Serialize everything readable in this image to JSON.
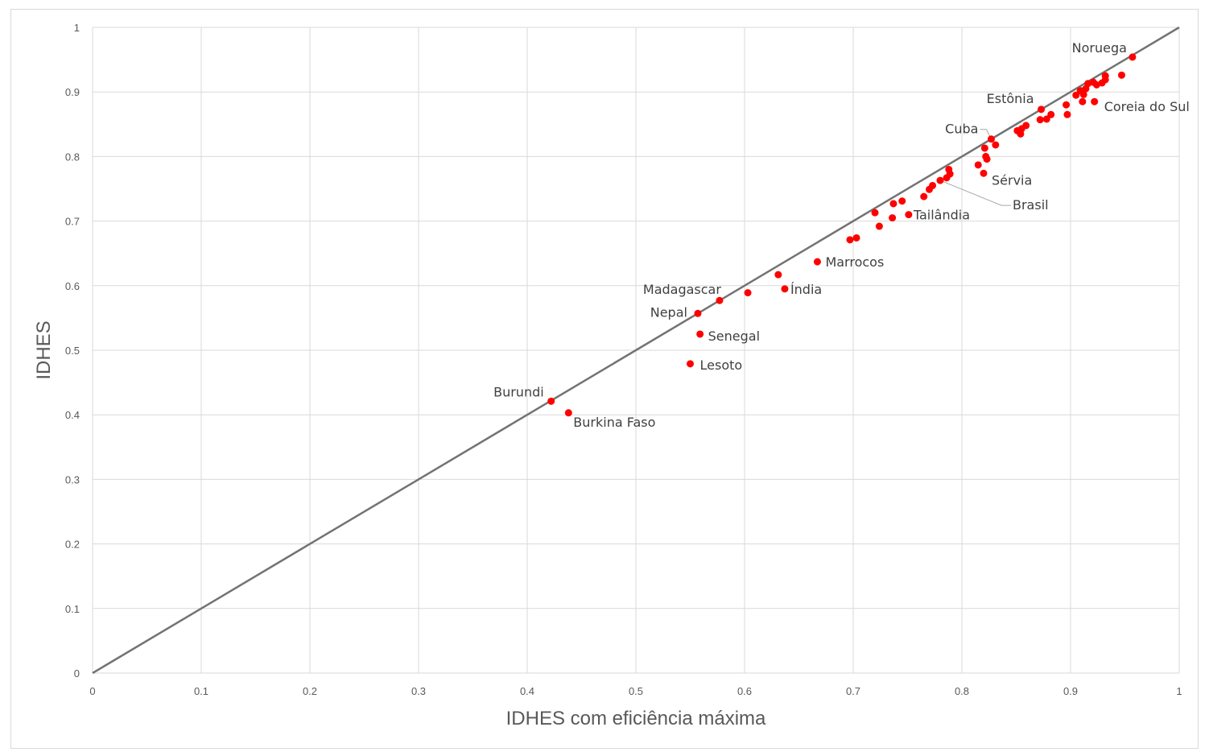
{
  "chart_data": {
    "type": "scatter",
    "title": "",
    "xlabel": "IDHES com eficiência máxima",
    "ylabel": "IDHES",
    "xlim": [
      0,
      1
    ],
    "ylim": [
      0,
      1
    ],
    "xticks": [
      "0",
      "0.1",
      "0.2",
      "0.3",
      "0.4",
      "0.5",
      "0.6",
      "0.7",
      "0.8",
      "0.9",
      "1"
    ],
    "yticks": [
      "0",
      "0.1",
      "0.2",
      "0.3",
      "0.4",
      "0.5",
      "0.6",
      "0.7",
      "0.8",
      "0.9",
      "1"
    ],
    "grid": true,
    "legend": "none",
    "reference_line": {
      "x": [
        0,
        1
      ],
      "y": [
        0,
        1
      ],
      "color": "#737373"
    },
    "point_color": "#ff0000",
    "points": [
      {
        "x": 0.957,
        "y": 0.954,
        "label": "Noruega"
      },
      {
        "x": 0.947,
        "y": 0.926
      },
      {
        "x": 0.932,
        "y": 0.925
      },
      {
        "x": 0.932,
        "y": 0.919
      },
      {
        "x": 0.929,
        "y": 0.914
      },
      {
        "x": 0.924,
        "y": 0.911
      },
      {
        "x": 0.921,
        "y": 0.915
      },
      {
        "x": 0.916,
        "y": 0.913
      },
      {
        "x": 0.914,
        "y": 0.905
      },
      {
        "x": 0.912,
        "y": 0.896
      },
      {
        "x": 0.909,
        "y": 0.902
      },
      {
        "x": 0.905,
        "y": 0.895
      },
      {
        "x": 0.911,
        "y": 0.885
      },
      {
        "x": 0.922,
        "y": 0.885,
        "label": "Coreia do Sul"
      },
      {
        "x": 0.896,
        "y": 0.88
      },
      {
        "x": 0.897,
        "y": 0.865
      },
      {
        "x": 0.873,
        "y": 0.873,
        "label": "Estônia"
      },
      {
        "x": 0.882,
        "y": 0.865
      },
      {
        "x": 0.878,
        "y": 0.858
      },
      {
        "x": 0.872,
        "y": 0.857
      },
      {
        "x": 0.859,
        "y": 0.848
      },
      {
        "x": 0.855,
        "y": 0.843
      },
      {
        "x": 0.851,
        "y": 0.84
      },
      {
        "x": 0.854,
        "y": 0.835
      },
      {
        "x": 0.827,
        "y": 0.827,
        "label": "Cuba"
      },
      {
        "x": 0.831,
        "y": 0.818
      },
      {
        "x": 0.821,
        "y": 0.813
      },
      {
        "x": 0.822,
        "y": 0.8
      },
      {
        "x": 0.823,
        "y": 0.796
      },
      {
        "x": 0.815,
        "y": 0.787
      },
      {
        "x": 0.82,
        "y": 0.774,
        "label": "Sérvia"
      },
      {
        "x": 0.788,
        "y": 0.78
      },
      {
        "x": 0.789,
        "y": 0.773
      },
      {
        "x": 0.786,
        "y": 0.767
      },
      {
        "x": 0.78,
        "y": 0.763,
        "label": "Brasil"
      },
      {
        "x": 0.773,
        "y": 0.755
      },
      {
        "x": 0.77,
        "y": 0.749
      },
      {
        "x": 0.765,
        "y": 0.738
      },
      {
        "x": 0.745,
        "y": 0.731
      },
      {
        "x": 0.737,
        "y": 0.727
      },
      {
        "x": 0.72,
        "y": 0.713
      },
      {
        "x": 0.751,
        "y": 0.71,
        "label": "Tailândia"
      },
      {
        "x": 0.736,
        "y": 0.705
      },
      {
        "x": 0.724,
        "y": 0.692
      },
      {
        "x": 0.703,
        "y": 0.674
      },
      {
        "x": 0.697,
        "y": 0.671
      },
      {
        "x": 0.667,
        "y": 0.637,
        "label": "Marrocos"
      },
      {
        "x": 0.631,
        "y": 0.617
      },
      {
        "x": 0.637,
        "y": 0.595,
        "label": "Índia"
      },
      {
        "x": 0.603,
        "y": 0.589
      },
      {
        "x": 0.577,
        "y": 0.577,
        "label": "Madagascar"
      },
      {
        "x": 0.557,
        "y": 0.557,
        "label": "Nepal"
      },
      {
        "x": 0.559,
        "y": 0.525,
        "label": "Senegal"
      },
      {
        "x": 0.55,
        "y": 0.479,
        "label": "Lesoto"
      },
      {
        "x": 0.422,
        "y": 0.421,
        "label": "Burundi"
      },
      {
        "x": 0.438,
        "y": 0.403,
        "label": "Burkina Faso"
      }
    ]
  }
}
